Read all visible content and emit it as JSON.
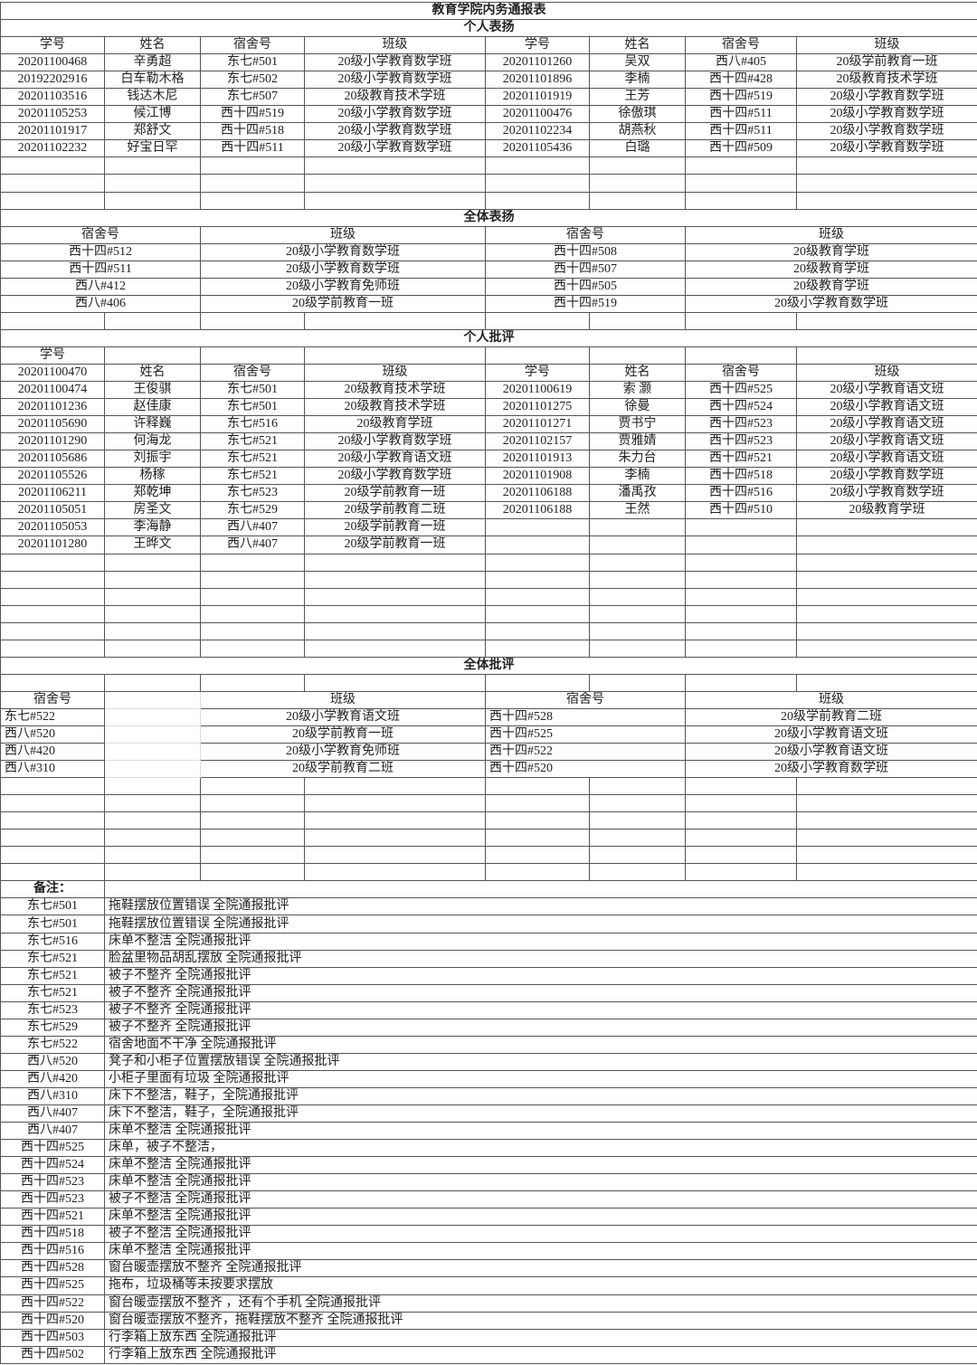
{
  "title": "教育学院内务通报表",
  "sections": {
    "individual_praise": {
      "heading": "个人表扬",
      "headers": [
        "学号",
        "姓名",
        "宿舍号",
        "班级"
      ],
      "left": [
        [
          "20201100468",
          "辛勇超",
          "东七#501",
          "20级小学教育数学班"
        ],
        [
          "20192202916",
          "白车勒木格",
          "东七#502",
          "20级小学教育数学班"
        ],
        [
          "20201103516",
          "钱达木尼",
          "东七#507",
          "20级教育技术学班"
        ],
        [
          "20201105253",
          "候江博",
          "西十四#519",
          "20级小学教育数学班"
        ],
        [
          "20201101917",
          "郑舒文",
          "西十四#518",
          "20级小学教育数学班"
        ],
        [
          "20201102232",
          "好宝日罕",
          "西十四#511",
          "20级小学教育数学班"
        ]
      ],
      "right": [
        [
          "20201101260",
          "吴双",
          "西八#405",
          "20级学前教育一班"
        ],
        [
          "20201101896",
          "李楠",
          "西十四#428",
          "20级教育技术学班"
        ],
        [
          "20201101919",
          "王芳",
          "西十四#519",
          "20级小学教育数学班"
        ],
        [
          "20201100476",
          "徐傲琪",
          "西十四#511",
          "20级小学教育数学班"
        ],
        [
          "20201102234",
          "胡燕秋",
          "西十四#511",
          "20级小学教育数学班"
        ],
        [
          "20201105436",
          "白璐",
          "西十四#509",
          "20级小学教育数学班"
        ]
      ]
    },
    "group_praise": {
      "heading": "全体表扬",
      "headers": [
        "宿舍号",
        "班级"
      ],
      "left": [
        [
          "西十四#512",
          "20级小学教育数学班"
        ],
        [
          "西十四#511",
          "20级小学教育数学班"
        ],
        [
          "西八#412",
          "20级小学教育免师班"
        ],
        [
          "西八#406",
          "20级学前教育一班"
        ]
      ],
      "right": [
        [
          "西十四#508",
          "20级教育学班"
        ],
        [
          "西十四#507",
          "20级教育学班"
        ],
        [
          "西十四#505",
          "20级教育学班"
        ],
        [
          "西十四#519",
          "20级小学教育数学班"
        ]
      ]
    },
    "individual_criticism": {
      "heading": "个人批评",
      "stray_header": "学号",
      "first_id": "20201100470",
      "headers": [
        "学号",
        "姓名",
        "宿舍号",
        "班级"
      ],
      "left": [
        [
          "20201100474",
          "王俊骐",
          "东七#501",
          "20级教育技术学班"
        ],
        [
          "20201101236",
          "赵佳康",
          "东七#501",
          "20级教育技术学班"
        ],
        [
          "20201105690",
          "许释巍",
          "东七#516",
          "20级教育学班"
        ],
        [
          "20201101290",
          "何海龙",
          "东七#521",
          "20级小学教育数学班"
        ],
        [
          "20201105686",
          "刘振宇",
          "东七#521",
          "20级小学教育语文班"
        ],
        [
          "20201105526",
          "杨稼",
          "东七#521",
          "20级小学教育数学班"
        ],
        [
          "20201106211",
          "郑乾坤",
          "东七#523",
          "20级学前教育一班"
        ],
        [
          "20201105051",
          "房圣文",
          "东七#529",
          "20级学前教育二班"
        ],
        [
          "20201105053",
          "李海静",
          "西八#407",
          "20级学前教育一班"
        ],
        [
          "20201101280",
          "王晔文",
          "西八#407",
          "20级学前教育一班"
        ]
      ],
      "right": [
        [
          "20201100619",
          "索 灏",
          "西十四#525",
          "20级小学教育语文班"
        ],
        [
          "20201101275",
          "徐曼",
          "西十四#524",
          "20级小学教育语文班"
        ],
        [
          "20201101271",
          "贾书宁",
          "西十四#523",
          "20级小学教育语文班"
        ],
        [
          "20201102157",
          "贾雅婧",
          "西十四#523",
          "20级小学教育语文班"
        ],
        [
          "20201101913",
          "朱力台",
          "西十四#521",
          "20级小学教育语文班"
        ],
        [
          "20201101908",
          "李楠",
          "西十四#518",
          "20级小学教育数学班"
        ],
        [
          "20201106188",
          "潘禹孜",
          "西十四#516",
          "20级小学教育数学班"
        ],
        [
          "20201106188",
          "王然",
          "西十四#510",
          "20级教育学班"
        ]
      ]
    },
    "group_criticism": {
      "heading": "全体批评",
      "headers": [
        "宿舍号",
        "班级"
      ],
      "left": [
        [
          "东七#522",
          "20级小学教育语文班"
        ],
        [
          "西八#520",
          "20级学前教育一班"
        ],
        [
          "西八#420",
          "20级小学教育免师班"
        ],
        [
          "西八#310",
          "20级学前教育二班"
        ]
      ],
      "right": [
        [
          "西十四#528",
          "20级学前教育二班"
        ],
        [
          "西十四#525",
          "20级小学教育语文班"
        ],
        [
          "西十四#522",
          "20级小学教育语文班"
        ],
        [
          "西十四#520",
          "20级小学教育数学班"
        ]
      ]
    },
    "remarks": {
      "heading": "备注：",
      "items": [
        [
          "东七#501",
          "拖鞋摆放位置错误 全院通报批评"
        ],
        [
          "东七#501",
          "拖鞋摆放位置错误 全院通报批评"
        ],
        [
          "东七#516",
          "床单不整洁 全院通报批评"
        ],
        [
          "东七#521",
          "脸盆里物品胡乱摆放 全院通报批评"
        ],
        [
          "东七#521",
          "被子不整齐 全院通报批评"
        ],
        [
          "东七#521",
          "被子不整齐 全院通报批评"
        ],
        [
          "东七#523",
          "被子不整齐 全院通报批评"
        ],
        [
          "东七#529",
          "被子不整齐 全院通报批评"
        ],
        [
          "东七#522",
          "宿舍地面不干净 全院通报批评"
        ],
        [
          "西八#520",
          "凳子和小柜子位置摆放错误 全院通报批评"
        ],
        [
          "西八#420",
          "小柜子里面有垃圾 全院通报批评"
        ],
        [
          "西八#310",
          "床下不整洁，鞋子，全院通报批评"
        ],
        [
          "西八#407",
          "床下不整洁，鞋子，全院通报批评"
        ],
        [
          "西八#407",
          "床单不整洁 全院通报批评"
        ],
        [
          "西十四#525",
          "床单，被子不整洁，"
        ],
        [
          "西十四#524",
          "床单不整洁 全院通报批评"
        ],
        [
          "西十四#523",
          "床单不整洁 全院通报批评"
        ],
        [
          "西十四#523",
          "被子不整洁 全院通报批评"
        ],
        [
          "西十四#521",
          "床单不整洁 全院通报批评"
        ],
        [
          "西十四#518",
          "被子不整洁 全院通报批评"
        ],
        [
          "西十四#516",
          "床单不整洁 全院通报批评"
        ],
        [
          "西十四#528",
          "窗台暖壶摆放不整齐 全院通报批评"
        ],
        [
          "西十四#525",
          "拖布，垃圾桶等未按要求摆放"
        ],
        [
          "西十四#522",
          "窗台暖壶摆放不整齐 ，还有个手机 全院通报批评"
        ],
        [
          "西十四#520",
          "窗台暖壶摆放不整齐，拖鞋摆放不整齐 全院通报批评"
        ],
        [
          "西十四#503",
          "行李箱上放东西 全院通报批评"
        ],
        [
          "西十四#502",
          "行李箱上放东西 全院通报批评"
        ]
      ]
    }
  }
}
